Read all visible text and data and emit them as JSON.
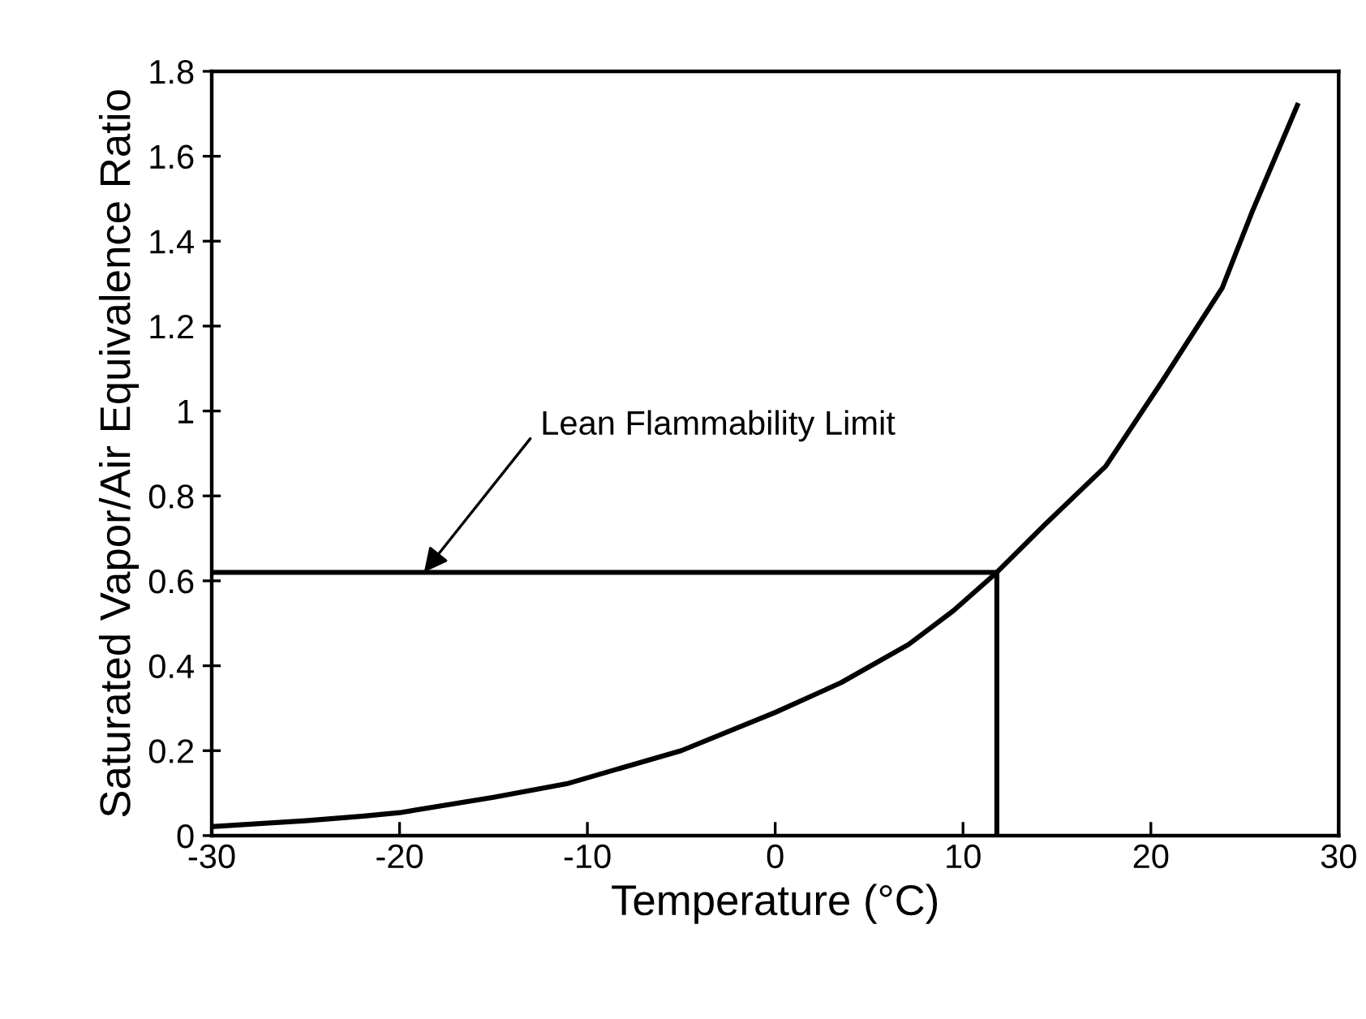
{
  "chart_data": {
    "type": "line",
    "xlabel": "Temperature (°C)",
    "ylabel": "Saturated Vapor/Air Equivalence Ratio",
    "xlim": [
      -30,
      30
    ],
    "ylim": [
      0,
      1.8
    ],
    "xticks": [
      -30,
      -20,
      -10,
      0,
      10,
      20,
      30
    ],
    "yticks": [
      0,
      0.2,
      0.4,
      0.6,
      0.8,
      1,
      1.2,
      1.4,
      1.6,
      1.8
    ],
    "grid": false,
    "legend": false,
    "marker": "none",
    "line_style": "solid",
    "series": [
      {
        "color": "#000000",
        "x": [
          -30,
          -25,
          -21.9,
          -20,
          -15,
          -11.1,
          -5,
          0,
          3.5,
          7.1,
          9.5,
          11.8,
          14.3,
          17.6,
          20.6,
          23.8,
          25.4,
          27.8
        ],
        "values": [
          0.021,
          0.035,
          0.046,
          0.054,
          0.09,
          0.122,
          0.2,
          0.29,
          0.36,
          0.45,
          0.53,
          0.62,
          0.73,
          0.87,
          1.07,
          1.29,
          1.47,
          1.72
        ]
      },
      {
        "color": "#000000",
        "x": [
          -30,
          11.8,
          11.8
        ],
        "values": [
          0.62,
          0.62,
          0
        ]
      }
    ],
    "annotations": [
      {
        "text": "Lean Flammability Limit",
        "x": -18.7,
        "y": 0.62
      }
    ]
  }
}
